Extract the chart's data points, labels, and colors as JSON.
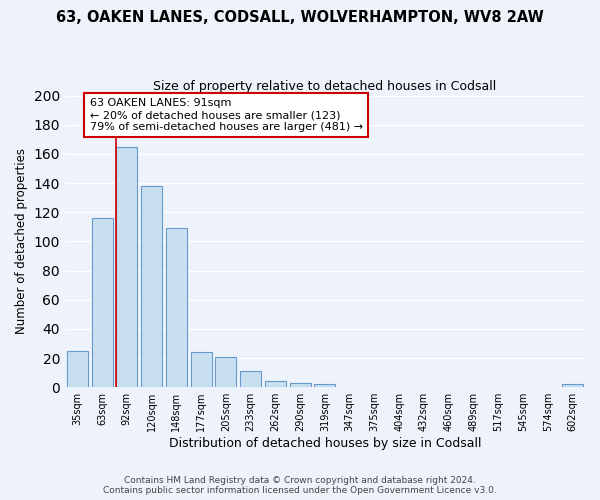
{
  "title": "63, OAKEN LANES, CODSALL, WOLVERHAMPTON, WV8 2AW",
  "subtitle": "Size of property relative to detached houses in Codsall",
  "xlabel": "Distribution of detached houses by size in Codsall",
  "ylabel": "Number of detached properties",
  "bin_labels": [
    "35sqm",
    "63sqm",
    "92sqm",
    "120sqm",
    "148sqm",
    "177sqm",
    "205sqm",
    "233sqm",
    "262sqm",
    "290sqm",
    "319sqm",
    "347sqm",
    "375sqm",
    "404sqm",
    "432sqm",
    "460sqm",
    "489sqm",
    "517sqm",
    "545sqm",
    "574sqm",
    "602sqm"
  ],
  "bar_values": [
    25,
    116,
    165,
    138,
    109,
    24,
    21,
    11,
    4,
    3,
    2,
    0,
    0,
    0,
    0,
    0,
    0,
    0,
    0,
    0,
    2
  ],
  "bar_color": "#c8dff0",
  "bar_edge_color": "#6699cc",
  "property_line_index": 2,
  "property_line_color": "#cc0000",
  "annotation_line1": "63 OAKEN LANES: 91sqm",
  "annotation_line2": "← 20% of detached houses are smaller (123)",
  "annotation_line3": "79% of semi-detached houses are larger (481) →",
  "annotation_box_color": "#cc0000",
  "ylim": [
    0,
    200
  ],
  "yticks": [
    0,
    20,
    40,
    60,
    80,
    100,
    120,
    140,
    160,
    180,
    200
  ],
  "footer_line1": "Contains HM Land Registry data © Crown copyright and database right 2024.",
  "footer_line2": "Contains public sector information licensed under the Open Government Licence v3.0.",
  "background_color": "#eef2fa",
  "grid_color": "#ffffff"
}
